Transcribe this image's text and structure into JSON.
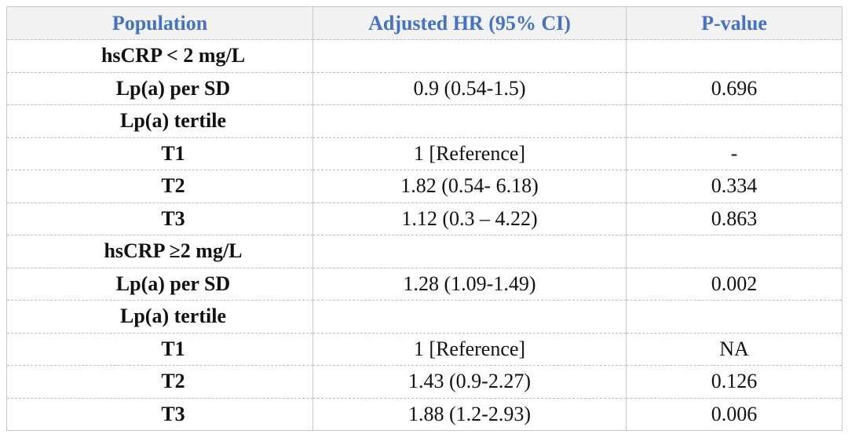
{
  "table": {
    "header": [
      "Population",
      "Adjusted HR (95% CI)",
      "P-value"
    ],
    "rows": [
      [
        "hsCRP < 2 mg/L",
        null,
        null
      ],
      [
        "Lp(a) per SD",
        "0.9 (0.54-1.5)",
        "0.696"
      ],
      [
        "Lp(a) tertile",
        null,
        null
      ],
      [
        "T1",
        "1 [Reference]",
        "-"
      ],
      [
        "T2",
        "1.82 (0.54- 6.18)",
        "0.334"
      ],
      [
        "T3",
        "1.12 (0.3 – 4.22)",
        "0.863"
      ],
      [
        "hsCRP ≥2 mg/L",
        null,
        null
      ],
      [
        "Lp(a) per SD",
        "1.28 (1.09-1.49)",
        "0.002"
      ],
      [
        "Lp(a) tertile",
        null,
        null
      ],
      [
        "T1",
        "1 [Reference]",
        "NA"
      ],
      [
        "T2",
        "1.43 (0.9-2.27)",
        "0.126"
      ],
      [
        "T3",
        "1.88 (1.2-2.93)",
        "0.006"
      ]
    ]
  }
}
